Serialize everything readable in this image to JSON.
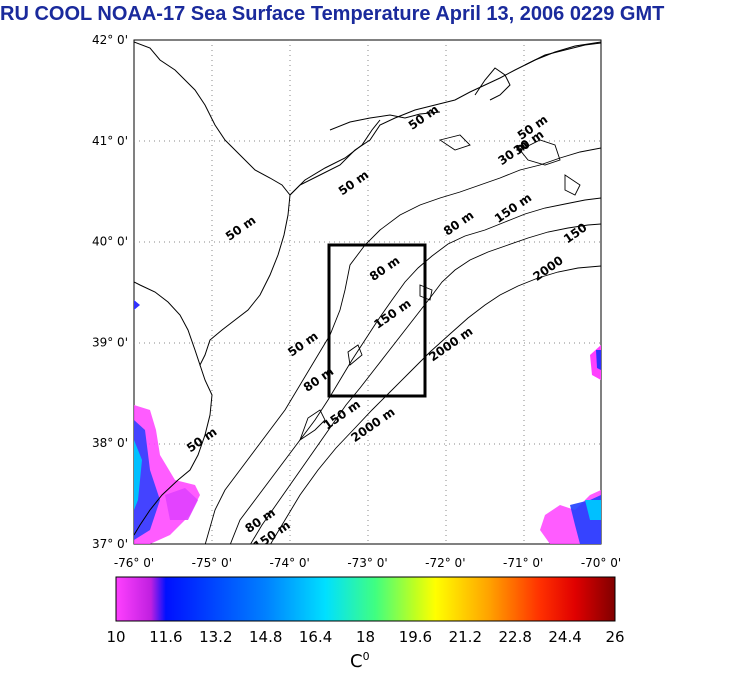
{
  "title": "RU COOL  NOAA-17 Sea Surface Temperature April 13, 2006 0229 GMT",
  "map": {
    "lon_range": [
      -76,
      -70
    ],
    "lat_range": [
      37,
      42
    ],
    "lon_labels": [
      "-76° 0'",
      "-75° 0'",
      "-74° 0'",
      "-73° 0'",
      "-72° 0'",
      "-71° 0'",
      "-70° 0'"
    ],
    "lat_labels": [
      "37° 0'",
      "38° 0'",
      "39° 0'",
      "40° 0'",
      "41° 0'",
      "42° 0'"
    ],
    "study_box": {
      "lon_min": -73.4,
      "lon_max": -72.4,
      "lat_min": 38.5,
      "lat_max": 40.0
    },
    "contour_labels": [
      {
        "text": "50 m",
        "lon": -74.6,
        "lat": 40.1
      },
      {
        "text": "50 m",
        "lon": -73.15,
        "lat": 40.55
      },
      {
        "text": "50 m",
        "lon": -72.25,
        "lat": 41.2
      },
      {
        "text": "50 m",
        "lon": -70.85,
        "lat": 41.1
      },
      {
        "text": "50 m",
        "lon": -75.1,
        "lat": 38.0
      },
      {
        "text": "50 m",
        "lon": -73.8,
        "lat": 38.95
      },
      {
        "text": "80 m",
        "lon": -72.75,
        "lat": 39.7
      },
      {
        "text": "80 m",
        "lon": -73.6,
        "lat": 38.6
      },
      {
        "text": "80 m",
        "lon": -74.35,
        "lat": 37.2
      },
      {
        "text": "80 m",
        "lon": -71.8,
        "lat": 40.15
      },
      {
        "text": "150 m",
        "lon": -72.65,
        "lat": 39.25
      },
      {
        "text": "150 m",
        "lon": -73.3,
        "lat": 38.25
      },
      {
        "text": "150 m",
        "lon": -74.2,
        "lat": 37.05
      },
      {
        "text": "150 m",
        "lon": -71.1,
        "lat": 40.3
      },
      {
        "text": "150",
        "lon": -70.3,
        "lat": 40.05
      },
      {
        "text": "2000 m",
        "lon": -71.9,
        "lat": 38.95
      },
      {
        "text": "2000 m",
        "lon": -72.9,
        "lat": 38.15
      },
      {
        "text": "2000",
        "lon": -70.65,
        "lat": 39.7
      },
      {
        "text": "30 m",
        "lon": -71.1,
        "lat": 40.85
      },
      {
        "text": "30 m",
        "lon": -70.9,
        "lat": 40.95
      }
    ]
  },
  "colorbar": {
    "min": 10,
    "max": 26,
    "tick_labels": [
      "10",
      "11.6",
      "13.2",
      "14.8",
      "16.4",
      "18",
      "19.6",
      "21.2",
      "22.8",
      "24.4",
      "26"
    ],
    "unit": "C",
    "unit_sup": "0",
    "colors": [
      "#ff40ff",
      "#c020e0",
      "#0010ff",
      "#0080ff",
      "#00e0ff",
      "#40ff80",
      "#c0ff20",
      "#ffff00",
      "#ffa000",
      "#ff3000",
      "#e00000",
      "#800000"
    ]
  }
}
